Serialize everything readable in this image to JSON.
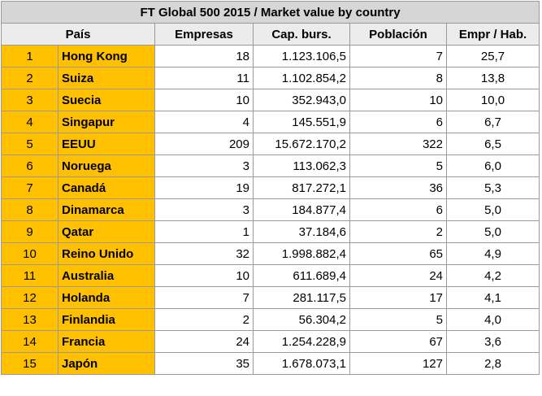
{
  "title": "FT Global 500 2015 / Market value by country",
  "headers": {
    "pais": "País",
    "empresas": "Empresas",
    "cap": "Cap. burs.",
    "poblacion": "Población",
    "ratio": "Empr / Hab."
  },
  "rows": [
    {
      "rank": "1",
      "country": "Hong Kong",
      "empresas": "18",
      "cap": "1.123.106,5",
      "poblacion": "7",
      "ratio": "25,7"
    },
    {
      "rank": "2",
      "country": "Suiza",
      "empresas": "11",
      "cap": "1.102.854,2",
      "poblacion": "8",
      "ratio": "13,8"
    },
    {
      "rank": "3",
      "country": "Suecia",
      "empresas": "10",
      "cap": "352.943,0",
      "poblacion": "10",
      "ratio": "10,0"
    },
    {
      "rank": "4",
      "country": "Singapur",
      "empresas": "4",
      "cap": "145.551,9",
      "poblacion": "6",
      "ratio": "6,7"
    },
    {
      "rank": "5",
      "country": "EEUU",
      "empresas": "209",
      "cap": "15.672.170,2",
      "poblacion": "322",
      "ratio": "6,5"
    },
    {
      "rank": "6",
      "country": "Noruega",
      "empresas": "3",
      "cap": "113.062,3",
      "poblacion": "5",
      "ratio": "6,0"
    },
    {
      "rank": "7",
      "country": "Canadá",
      "empresas": "19",
      "cap": "817.272,1",
      "poblacion": "36",
      "ratio": "5,3"
    },
    {
      "rank": "8",
      "country": "Dinamarca",
      "empresas": "3",
      "cap": "184.877,4",
      "poblacion": "6",
      "ratio": "5,0"
    },
    {
      "rank": "9",
      "country": "Qatar",
      "empresas": "1",
      "cap": "37.184,6",
      "poblacion": "2",
      "ratio": "5,0"
    },
    {
      "rank": "10",
      "country": "Reino Unido",
      "empresas": "32",
      "cap": "1.998.882,4",
      "poblacion": "65",
      "ratio": "4,9"
    },
    {
      "rank": "11",
      "country": "Australia",
      "empresas": "10",
      "cap": "611.689,4",
      "poblacion": "24",
      "ratio": "4,2"
    },
    {
      "rank": "12",
      "country": "Holanda",
      "empresas": "7",
      "cap": "281.117,5",
      "poblacion": "17",
      "ratio": "4,1"
    },
    {
      "rank": "13",
      "country": "Finlandia",
      "empresas": "2",
      "cap": "56.304,2",
      "poblacion": "5",
      "ratio": "4,0"
    },
    {
      "rank": "14",
      "country": "Francia",
      "empresas": "24",
      "cap": "1.254.228,9",
      "poblacion": "67",
      "ratio": "3,6"
    },
    {
      "rank": "15",
      "country": "Japón",
      "empresas": "35",
      "cap": "1.678.073,1",
      "poblacion": "127",
      "ratio": "2,8"
    }
  ]
}
